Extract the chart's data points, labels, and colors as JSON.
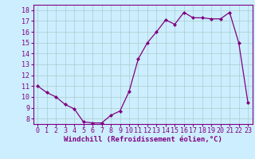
{
  "x": [
    0,
    1,
    2,
    3,
    4,
    5,
    6,
    7,
    8,
    9,
    10,
    11,
    12,
    13,
    14,
    15,
    16,
    17,
    18,
    19,
    20,
    21,
    22,
    23
  ],
  "y": [
    11,
    10.4,
    10,
    9.3,
    8.9,
    7.7,
    7.6,
    7.6,
    8.3,
    8.7,
    10.5,
    13.5,
    15,
    16.0,
    17.1,
    16.7,
    17.8,
    17.3,
    17.3,
    17.2,
    17.2,
    17.8,
    15.0,
    9.5
  ],
  "line_color": "#800080",
  "marker": "D",
  "marker_size": 2.0,
  "bg_color": "#cceeff",
  "grid_color": "#aacccc",
  "xlabel": "Windchill (Refroidissement éolien,°C)",
  "xlabel_fontsize": 6.5,
  "tick_fontsize": 6.0,
  "ylim": [
    7.5,
    18.5
  ],
  "xlim": [
    -0.5,
    23.5
  ],
  "yticks": [
    8,
    9,
    10,
    11,
    12,
    13,
    14,
    15,
    16,
    17,
    18
  ],
  "xticks": [
    0,
    1,
    2,
    3,
    4,
    5,
    6,
    7,
    8,
    9,
    10,
    11,
    12,
    13,
    14,
    15,
    16,
    17,
    18,
    19,
    20,
    21,
    22,
    23
  ]
}
